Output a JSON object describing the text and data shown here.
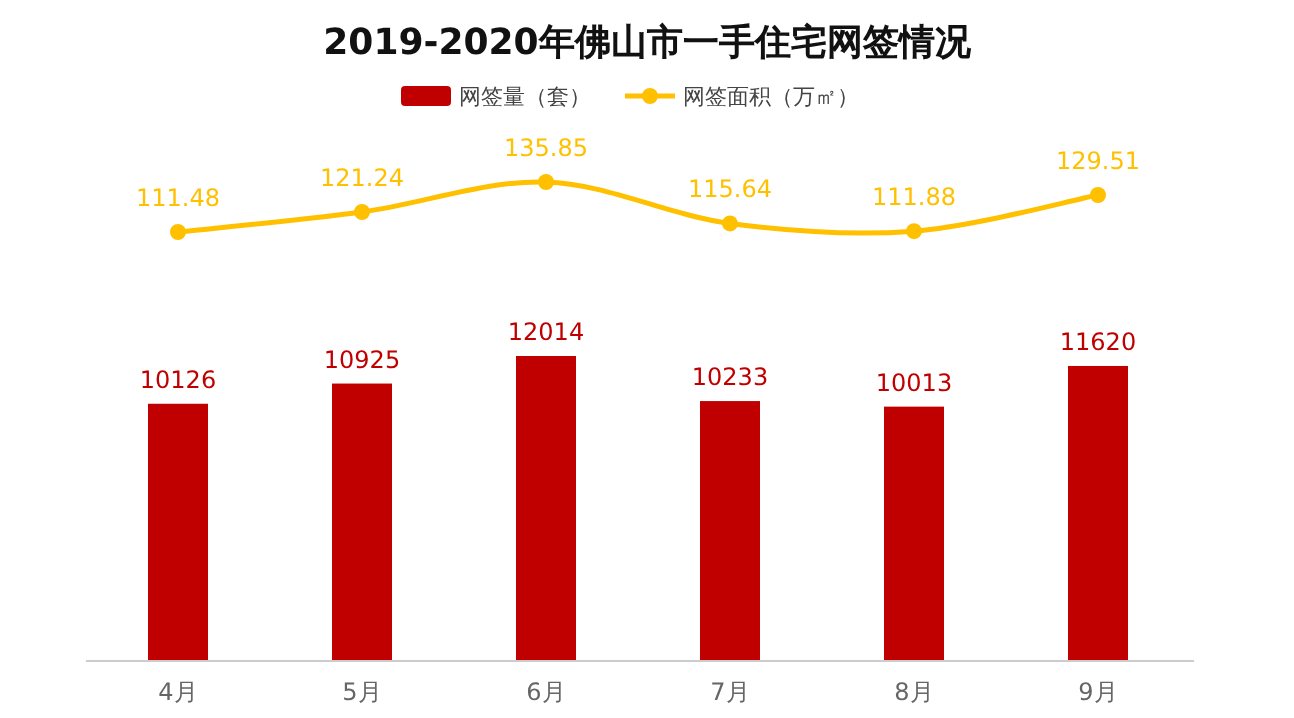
{
  "chart_data": [
    {
      "type": "line",
      "title": "2019-2020年佛山市一手住宅网签情况",
      "categories": [
        null,
        null,
        null,
        null,
        null,
        null
      ],
      "series": [
        {
          "name": "网签面积（万㎡）",
          "color": "#ffc000",
          "values": [
            111.48,
            121.24,
            135.85,
            115.64,
            111.88,
            129.51
          ]
        }
      ],
      "data_labels": true,
      "legend": "top",
      "marker": "circle"
    },
    {
      "type": "bar",
      "categories": [
        "4月",
        "5月",
        "6月",
        "7月",
        "8月",
        "9月"
      ],
      "series": [
        {
          "name": "网签量（套）",
          "color": "#c00000",
          "values": [
            10126,
            10925,
            12014,
            10233,
            10013,
            11620
          ]
        }
      ],
      "data_labels": true,
      "legend": "top",
      "grid": false
    }
  ]
}
